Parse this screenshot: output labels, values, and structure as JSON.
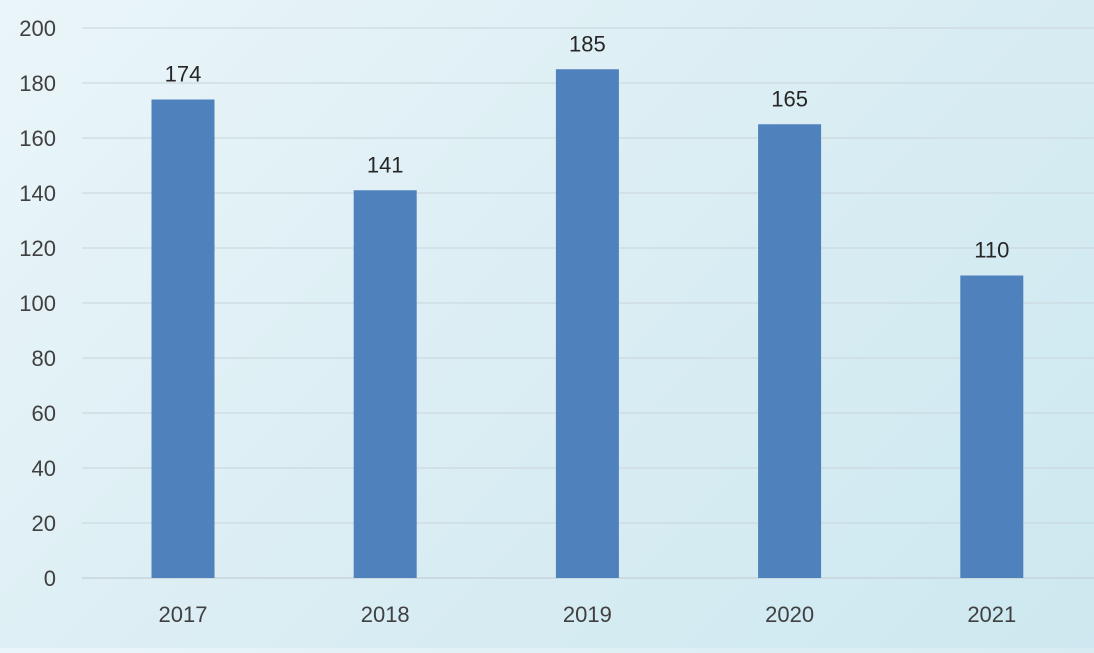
{
  "chart_data": {
    "type": "bar",
    "title": "",
    "xlabel": "",
    "ylabel": "",
    "categories": [
      "2017",
      "2018",
      "2019",
      "2020",
      "2021"
    ],
    "values": [
      174,
      141,
      185,
      165,
      110
    ],
    "data_labels": [
      "174",
      "141",
      "185",
      "165",
      "110"
    ],
    "ylim": [
      0,
      200
    ],
    "yticks": [
      0,
      20,
      40,
      60,
      80,
      100,
      120,
      140,
      160,
      180,
      200
    ],
    "ytick_labels": [
      "0",
      "20",
      "40",
      "60",
      "80",
      "100",
      "120",
      "140",
      "160",
      "180",
      "200"
    ],
    "grid": true,
    "legend": "none",
    "bar_color": "#4f81bd",
    "grid_color": "#c8d4da",
    "text_color": "#404040",
    "label_color": "#262626"
  }
}
